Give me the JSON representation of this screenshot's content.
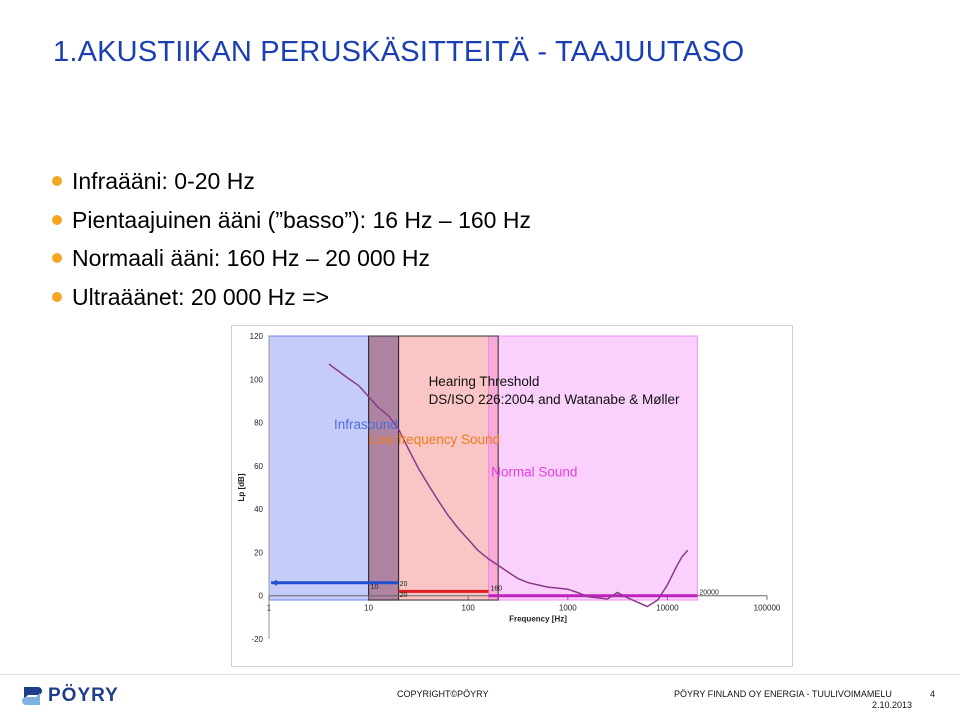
{
  "slide": {
    "title": "1.AKUSTIIKAN PERUSKÄSITTEITÄ - TAAJUUTASO",
    "bullets": [
      "Infraääni: 0-20 Hz",
      "Pientaajuinen ääni (”basso”): 16 Hz – 160 Hz",
      "Normaali ääni: 160 Hz – 20 000 Hz",
      "Ultraäänet: 20 000 Hz =>"
    ],
    "bullet_color": "#f5a623",
    "title_color": "#1a3fb5"
  },
  "chart_data": {
    "type": "line",
    "xlabel": "Frequency [Hz]",
    "ylabel": "Lp [dB]",
    "xscale": "log",
    "xlim": [
      1,
      100000
    ],
    "ylim": [
      -20,
      120
    ],
    "x_ticks": [
      "1",
      "10",
      "100",
      "1000",
      "10000",
      "100000"
    ],
    "y_ticks": [
      "-20",
      "0",
      "20",
      "40",
      "60",
      "80",
      "100",
      "120"
    ],
    "grid": false,
    "regions": [
      {
        "name": "Infrasound",
        "x": [
          1,
          20
        ],
        "color": "#5a6df0",
        "label_color": "#4b6fd6"
      },
      {
        "name": "Low frequency Sound",
        "x": [
          10,
          200
        ],
        "color": "#f25a5a",
        "label_color": "#ef7b1a"
      },
      {
        "name": "Normal Sound",
        "x": [
          160,
          20000
        ],
        "color": "#f07af5",
        "label_color": "#e040e0"
      }
    ],
    "overlap_band": [
      10,
      20
    ],
    "annotations": [
      "Hearing Threshold",
      "DS/ISO 226:2004 and Watanabe & Møller"
    ],
    "range_markers": [
      {
        "color": "#2050d0",
        "x": [
          1,
          20
        ],
        "labels": [
          "10"
        ]
      },
      {
        "color": "#e02020",
        "x": [
          20,
          160
        ],
        "labels": [
          "20",
          "20",
          "160"
        ]
      },
      {
        "color": "#c020c0",
        "x": [
          160,
          20000
        ],
        "labels": [
          "20000"
        ]
      }
    ],
    "series": [
      {
        "name": "Hearing Threshold",
        "color": "#8b3a8b",
        "x": [
          4,
          6,
          8,
          10,
          12.5,
          16,
          20,
          25,
          31.5,
          40,
          50,
          63,
          80,
          100,
          125,
          160,
          200,
          250,
          315,
          400,
          500,
          630,
          800,
          1000,
          1250,
          1600,
          2000,
          2500,
          3150,
          4000,
          5000,
          6300,
          8000,
          10000,
          12500,
          14000,
          16000
        ],
        "y": [
          107,
          101,
          97,
          92,
          87,
          83,
          77,
          68,
          59,
          51,
          44,
          37,
          31,
          26,
          21,
          17,
          14,
          11,
          8,
          6,
          5,
          4,
          3.5,
          3,
          1.5,
          -0.5,
          -1,
          -1.5,
          1.5,
          -1,
          -3,
          -5,
          -2,
          5,
          14,
          18,
          21
        ]
      }
    ]
  },
  "footer": {
    "logo_text": "PÖYRY",
    "copyright": "COPYRIGHT©PÖYRY",
    "company": "PÖYRY FINLAND OY ENERGIA - TUULIVOIMAMELU",
    "date": "2.10.2013",
    "page": "4",
    "logo_color": "#1d3e8a"
  }
}
